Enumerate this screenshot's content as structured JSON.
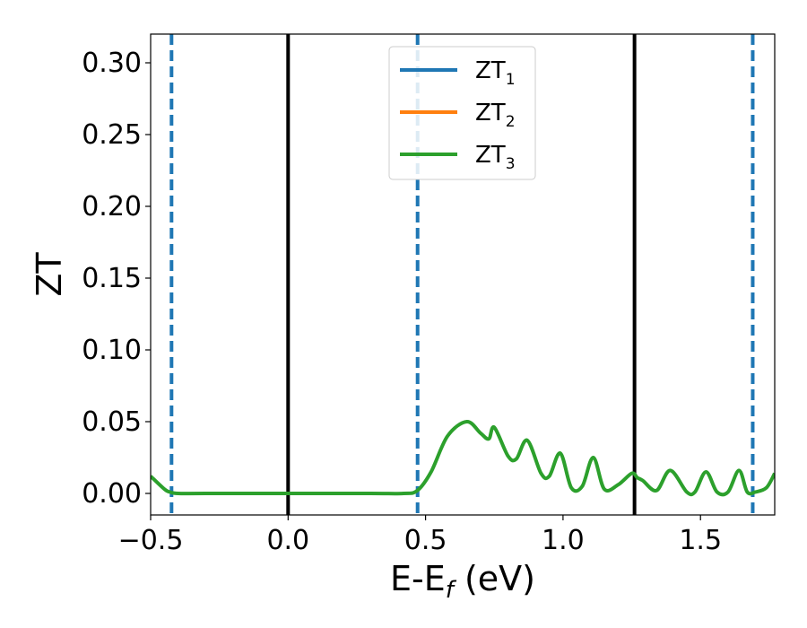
{
  "chart_data": {
    "type": "line",
    "title": "",
    "xlabel": "E-E",
    "xlabel_sub": "f",
    "xlabel_unit": " (eV)",
    "ylabel": "ZT",
    "xlim": [
      -0.5,
      1.77
    ],
    "ylim": [
      -0.015,
      0.32
    ],
    "x_ticks": [
      -0.5,
      0.0,
      0.5,
      1.0,
      1.5
    ],
    "x_tick_labels": [
      "−0.5",
      "0.0",
      "0.5",
      "1.0",
      "1.5"
    ],
    "y_ticks": [
      0.0,
      0.05,
      0.1,
      0.15,
      0.2,
      0.25,
      0.3
    ],
    "y_tick_labels": [
      "0.00",
      "0.05",
      "0.10",
      "0.15",
      "0.20",
      "0.25",
      "0.30"
    ],
    "grid": false,
    "legend_position": "top-center",
    "series": [
      {
        "name": "ZT",
        "name_sub": "1",
        "color": "#1f77b4",
        "visible_in_plot": false,
        "x": [
          -0.5,
          -0.45,
          -0.43,
          -0.4,
          -0.3,
          0.0,
          0.3,
          0.42,
          0.47,
          0.52,
          0.58,
          0.65,
          0.7,
          0.73,
          0.75,
          0.8,
          0.83,
          0.87,
          0.92,
          0.95,
          0.99,
          1.03,
          1.07,
          1.11,
          1.15,
          1.2,
          1.25,
          1.27,
          1.29,
          1.34,
          1.39,
          1.45,
          1.48,
          1.52,
          1.56,
          1.6,
          1.64,
          1.67,
          1.7,
          1.74,
          1.77
        ],
        "y": [
          0.012,
          0.003,
          0.001,
          0.0,
          0.0,
          0.0,
          0.0,
          0.0,
          0.002,
          0.015,
          0.04,
          0.05,
          0.042,
          0.038,
          0.046,
          0.026,
          0.024,
          0.037,
          0.014,
          0.012,
          0.028,
          0.004,
          0.005,
          0.025,
          0.003,
          0.006,
          0.014,
          0.011,
          0.009,
          0.002,
          0.016,
          0.001,
          0.001,
          0.015,
          0.001,
          0.001,
          0.016,
          0.001,
          0.001,
          0.004,
          0.014
        ]
      },
      {
        "name": "ZT",
        "name_sub": "2",
        "color": "#ff7f0e",
        "visible_in_plot": false,
        "x": [
          -0.5,
          -0.45,
          -0.43,
          -0.4,
          -0.3,
          0.0,
          0.3,
          0.42,
          0.47,
          0.52,
          0.58,
          0.65,
          0.7,
          0.73,
          0.75,
          0.8,
          0.83,
          0.87,
          0.92,
          0.95,
          0.99,
          1.03,
          1.07,
          1.11,
          1.15,
          1.2,
          1.25,
          1.27,
          1.29,
          1.34,
          1.39,
          1.45,
          1.48,
          1.52,
          1.56,
          1.6,
          1.64,
          1.67,
          1.7,
          1.74,
          1.77
        ],
        "y": [
          0.012,
          0.003,
          0.001,
          0.0,
          0.0,
          0.0,
          0.0,
          0.0,
          0.002,
          0.015,
          0.04,
          0.05,
          0.042,
          0.038,
          0.046,
          0.026,
          0.024,
          0.037,
          0.014,
          0.012,
          0.028,
          0.004,
          0.005,
          0.025,
          0.003,
          0.006,
          0.014,
          0.011,
          0.009,
          0.002,
          0.016,
          0.001,
          0.001,
          0.015,
          0.001,
          0.001,
          0.016,
          0.001,
          0.001,
          0.004,
          0.014
        ]
      },
      {
        "name": "ZT",
        "name_sub": "3",
        "color": "#2ca02c",
        "visible_in_plot": true,
        "x": [
          -0.5,
          -0.45,
          -0.43,
          -0.4,
          -0.3,
          0.0,
          0.3,
          0.42,
          0.47,
          0.52,
          0.58,
          0.65,
          0.7,
          0.73,
          0.75,
          0.8,
          0.83,
          0.87,
          0.92,
          0.95,
          0.99,
          1.03,
          1.07,
          1.11,
          1.15,
          1.2,
          1.25,
          1.27,
          1.29,
          1.34,
          1.39,
          1.45,
          1.48,
          1.52,
          1.56,
          1.6,
          1.64,
          1.67,
          1.7,
          1.74,
          1.77
        ],
        "y": [
          0.012,
          0.003,
          0.001,
          0.0,
          0.0,
          0.0,
          0.0,
          0.0,
          0.002,
          0.015,
          0.04,
          0.05,
          0.042,
          0.038,
          0.046,
          0.026,
          0.024,
          0.037,
          0.014,
          0.012,
          0.028,
          0.004,
          0.005,
          0.025,
          0.003,
          0.006,
          0.014,
          0.011,
          0.009,
          0.002,
          0.016,
          0.001,
          0.001,
          0.015,
          0.001,
          0.001,
          0.016,
          0.001,
          0.001,
          0.004,
          0.014
        ]
      }
    ],
    "vertical_lines": [
      {
        "x": -0.424,
        "style": "dashed",
        "color": "#1f77b4"
      },
      {
        "x": 0.0,
        "style": "solid",
        "color": "#000000"
      },
      {
        "x": 0.471,
        "style": "dashed",
        "color": "#1f77b4"
      },
      {
        "x": 1.26,
        "style": "solid",
        "color": "#000000"
      },
      {
        "x": 1.69,
        "style": "dashed",
        "color": "#1f77b4"
      }
    ]
  }
}
